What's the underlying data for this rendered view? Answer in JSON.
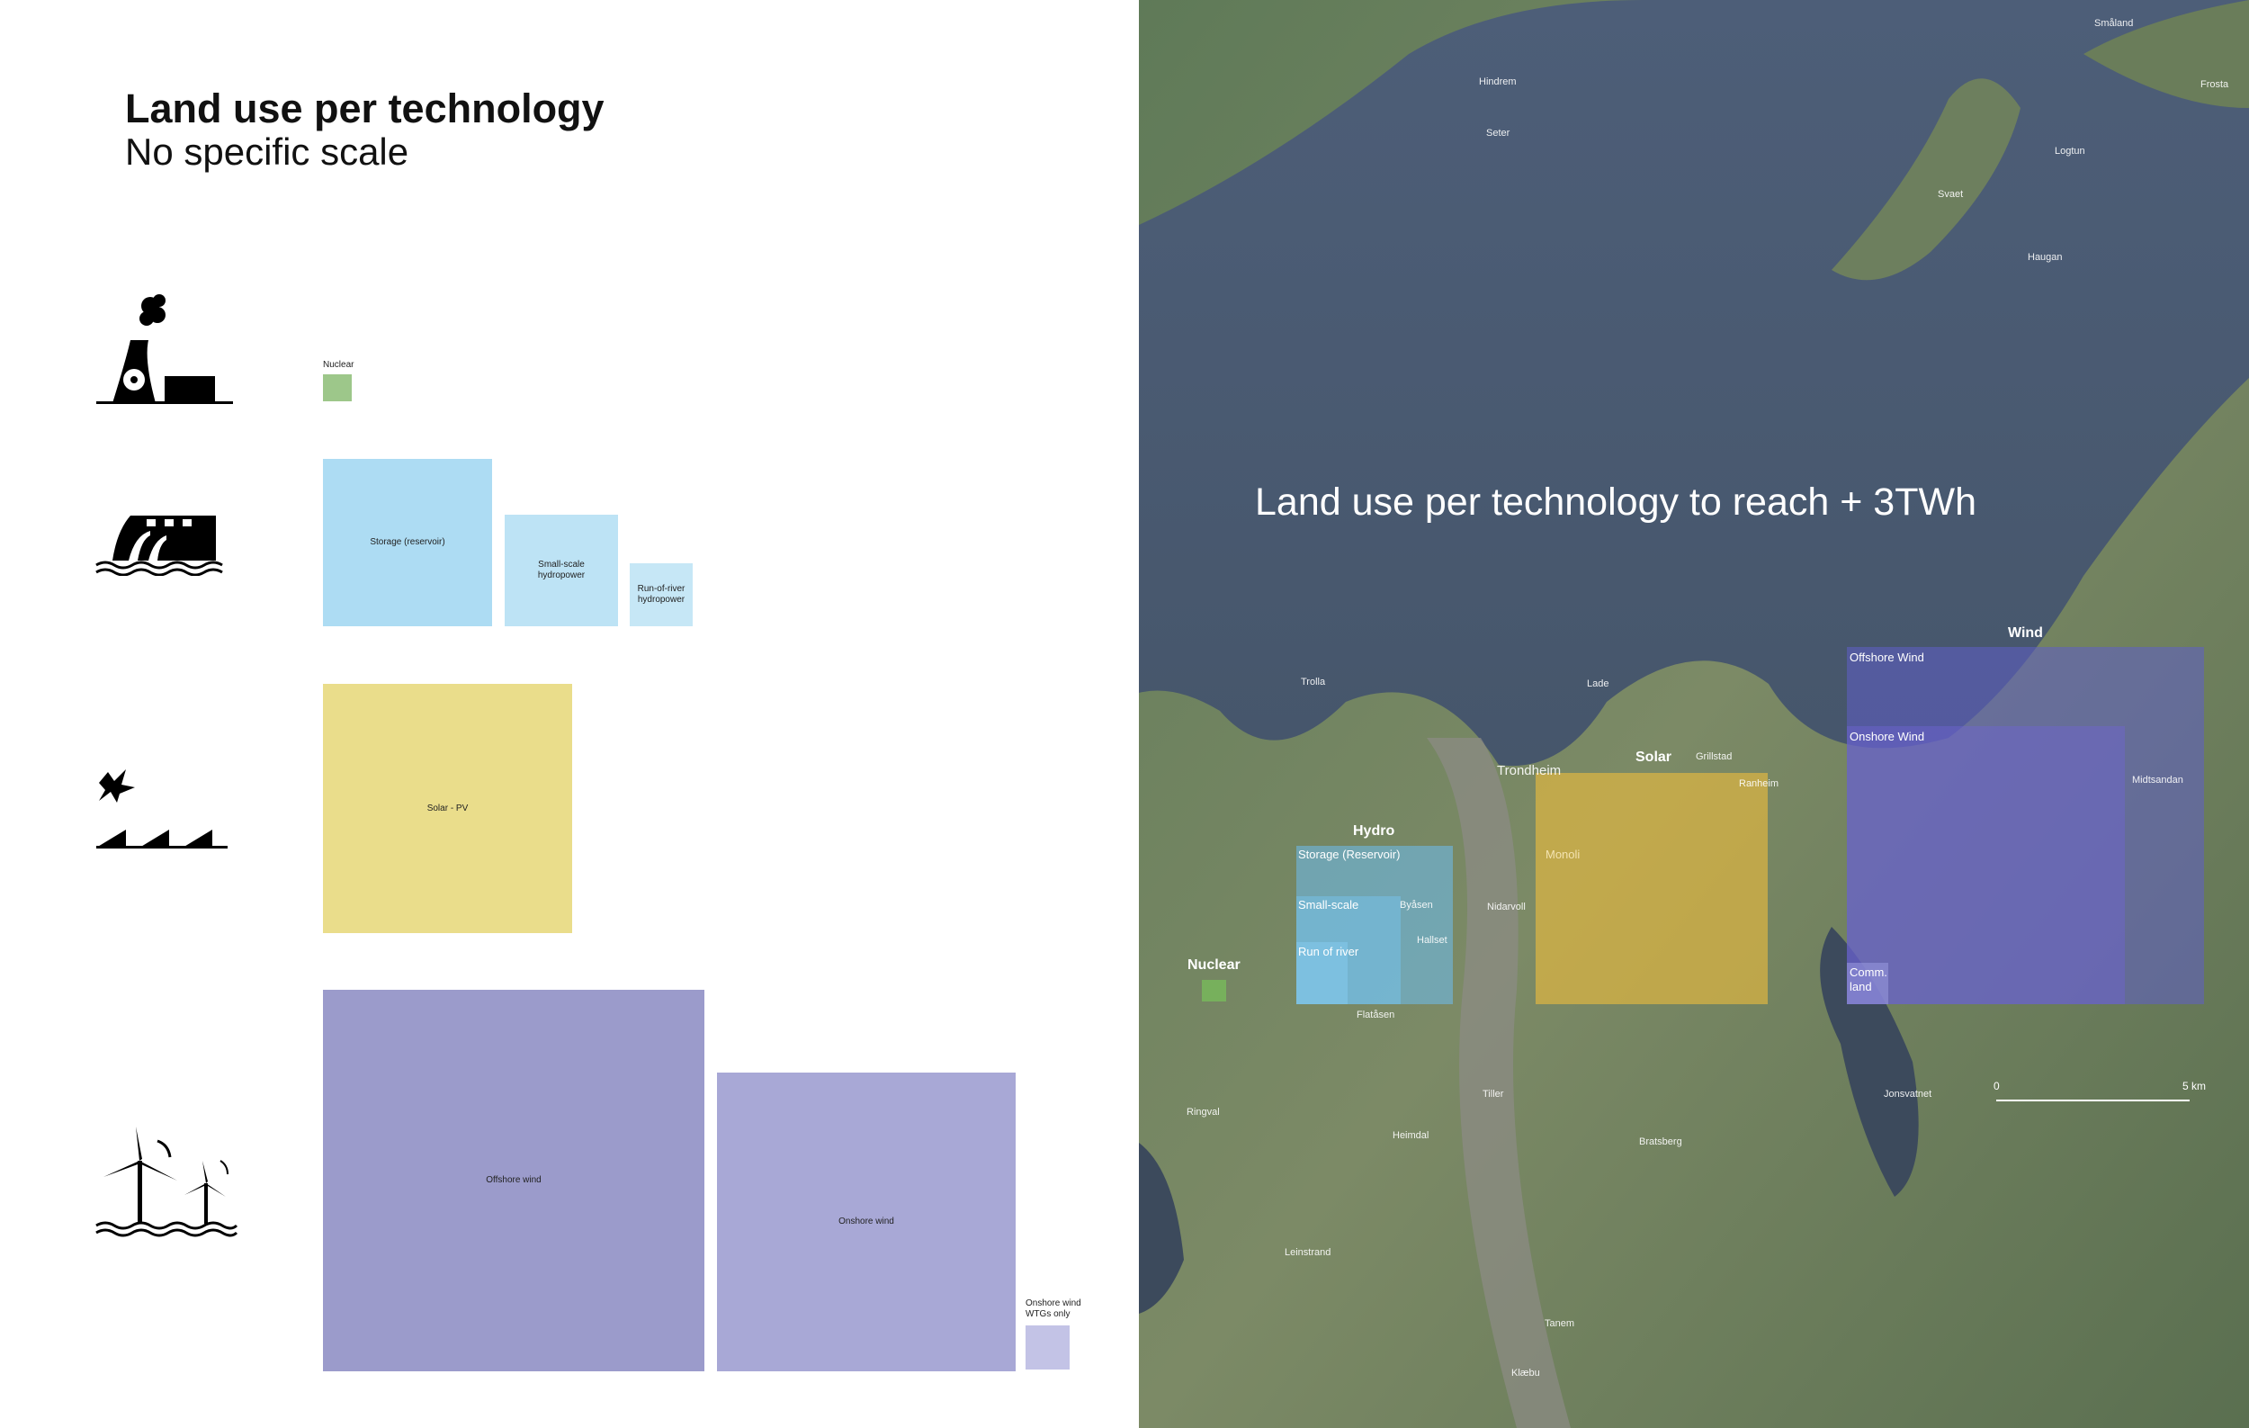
{
  "left": {
    "title": "Land use per technology",
    "subtitle": "No specific scale",
    "labels": {
      "nuclear": "Nuclear",
      "storage": "Storage (reservoir)",
      "small_scale": "Small-scale hydropower",
      "run_of_river": "Run-of-river hydropower",
      "solar": "Solar - PV",
      "offshore": "Offshore wind",
      "onshore": "Onshore wind",
      "wtg": "Onshore wind WTGs only"
    }
  },
  "map": {
    "title": "Land use per technology to reach + 3TWh",
    "groups": {
      "wind": "Wind",
      "solar": "Solar",
      "hydro": "Hydro",
      "nuclear": "Nuclear"
    },
    "overlays": {
      "offshore": "Offshore Wind",
      "onshore": "Onshore Wind",
      "comm_land": "Comm. land",
      "storage": "Storage (Reservoir)",
      "small_scale": "Small-scale",
      "run_of_river": "Run of river",
      "solar_place": "Monoli"
    },
    "places": [
      "Trondheim",
      "Lade",
      "Trolla",
      "Flatåsen",
      "Nidarvoll",
      "Svaet",
      "Haugan",
      "Hindrem",
      "Seter",
      "Småland",
      "Frosta",
      "Logtun",
      "Ringval",
      "Bratsberg",
      "Leinstrand",
      "Tiller",
      "Heimdal",
      "Tanem",
      "Klæbu",
      "Jonsvatnet",
      "Grillstad",
      "Ranheim",
      "Byåsen",
      "Hallset",
      "Midtsandan"
    ],
    "scale": {
      "start": "0",
      "end": "5 km"
    }
  }
}
